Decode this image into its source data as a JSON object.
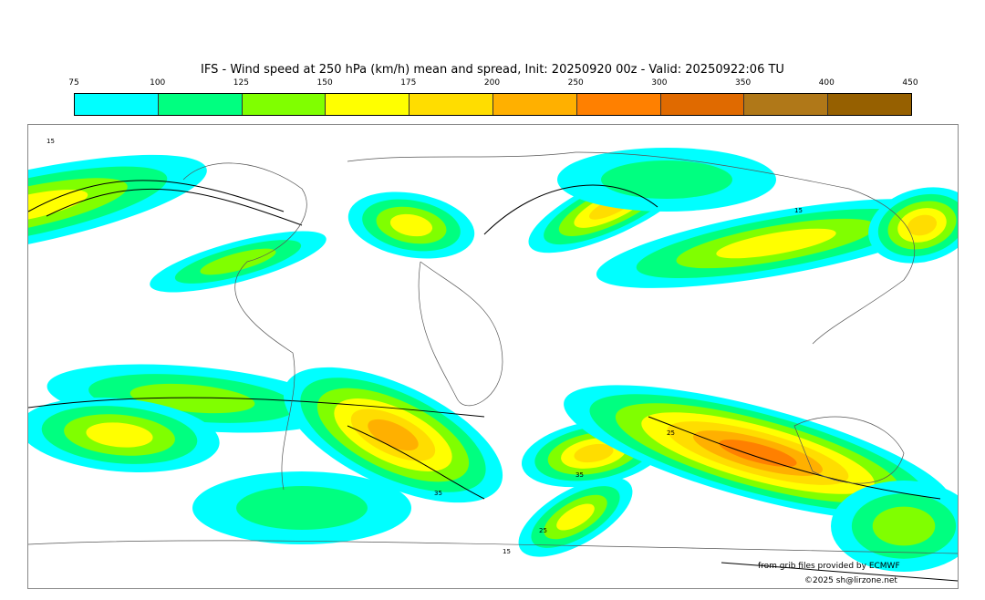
{
  "title": "IFS - Wind speed at 250 hPa (km/h) mean and spread, Init: 20250920 00z - Valid: 20250922:06 TU",
  "colorbar": {
    "ticks": [
      "75",
      "100",
      "125",
      "150",
      "175",
      "200",
      "250",
      "300",
      "350",
      "400",
      "450"
    ],
    "colors": [
      "#00ffff",
      "#00ff80",
      "#80ff00",
      "#ffff00",
      "#ffdd00",
      "#ffb000",
      "#ff8000",
      "#e06a00",
      "#b07818",
      "#966000"
    ]
  },
  "map": {
    "contour_labels": [
      "15",
      "25",
      "35"
    ]
  },
  "credits": {
    "source": "from grib files provided by ECMWF",
    "copyright": "©2025 sh@lirzone.net"
  }
}
